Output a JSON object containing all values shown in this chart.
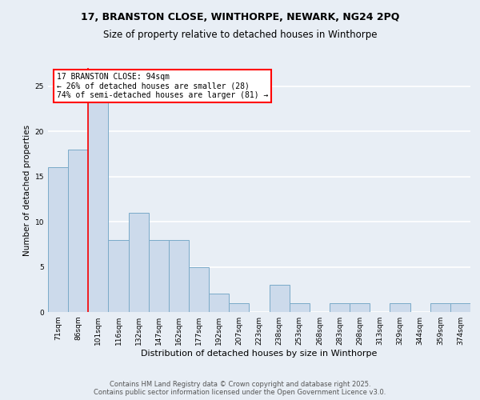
{
  "title_line1": "17, BRANSTON CLOSE, WINTHORPE, NEWARK, NG24 2PQ",
  "title_line2": "Size of property relative to detached houses in Winthorpe",
  "xlabel": "Distribution of detached houses by size in Winthorpe",
  "ylabel": "Number of detached properties",
  "categories": [
    "71sqm",
    "86sqm",
    "101sqm",
    "116sqm",
    "132sqm",
    "147sqm",
    "162sqm",
    "177sqm",
    "192sqm",
    "207sqm",
    "223sqm",
    "238sqm",
    "253sqm",
    "268sqm",
    "283sqm",
    "298sqm",
    "313sqm",
    "329sqm",
    "344sqm",
    "359sqm",
    "374sqm"
  ],
  "values": [
    16,
    18,
    25,
    8,
    11,
    8,
    8,
    5,
    2,
    1,
    0,
    3,
    1,
    0,
    1,
    1,
    0,
    1,
    0,
    1,
    1
  ],
  "bar_color": "#ccdaeb",
  "bar_edge_color": "#7aaac8",
  "red_line_x": 1.5,
  "annotation_text": "17 BRANSTON CLOSE: 94sqm\n← 26% of detached houses are smaller (28)\n74% of semi-detached houses are larger (81) →",
  "annotation_box_color": "white",
  "annotation_box_edge": "red",
  "ylim": [
    0,
    27
  ],
  "yticks": [
    0,
    5,
    10,
    15,
    20,
    25
  ],
  "bg_color": "#e8eef5",
  "grid_color": "white",
  "footer_line1": "Contains HM Land Registry data © Crown copyright and database right 2025.",
  "footer_line2": "Contains public sector information licensed under the Open Government Licence v3.0.",
  "title_fontsize": 9,
  "subtitle_fontsize": 8.5,
  "xlabel_fontsize": 8,
  "ylabel_fontsize": 7.5,
  "tick_fontsize": 6.5,
  "annotation_fontsize": 7,
  "footer_fontsize": 6
}
